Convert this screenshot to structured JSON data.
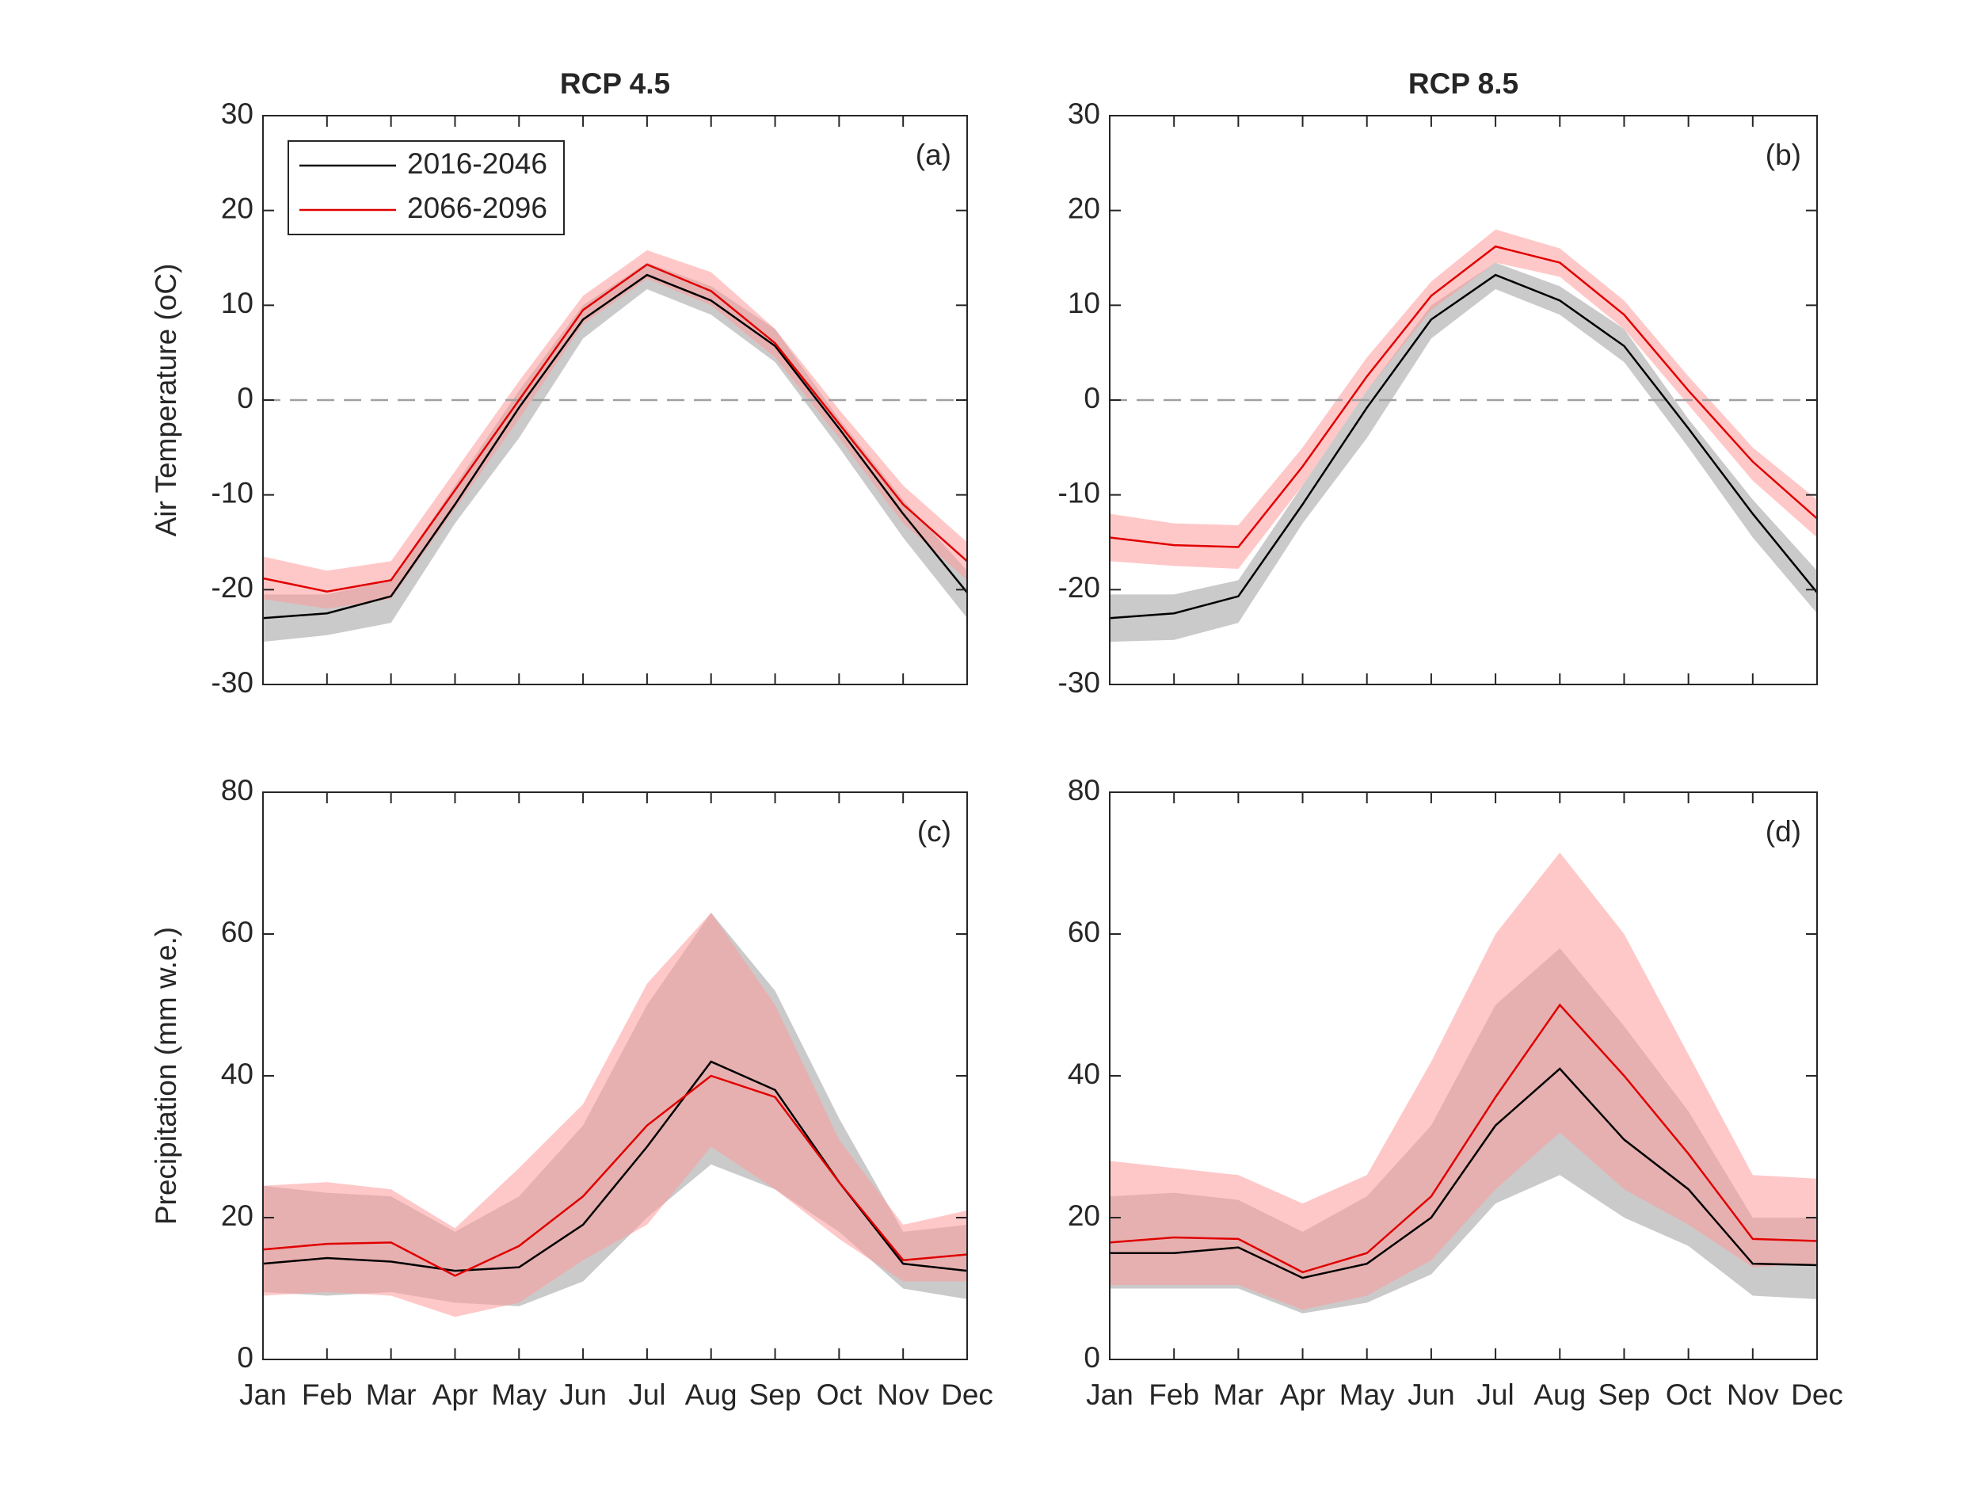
{
  "chart_data": [
    {
      "type": "line",
      "title": "RCP 4.5",
      "annotation": "(a)",
      "ylabel": "Air Temperature (oC)",
      "x": [
        1,
        2,
        3,
        4,
        5,
        6,
        7,
        8,
        9,
        10,
        11,
        12
      ],
      "xlim": [
        1,
        12
      ],
      "xticks": [
        1,
        2,
        3,
        4,
        5,
        6,
        7,
        8,
        9,
        10,
        11,
        12
      ],
      "ylim": [
        -30,
        30
      ],
      "yticks": [
        -30,
        -20,
        -10,
        0,
        10,
        20,
        30
      ],
      "reference_line": 0,
      "legend": "upper left",
      "series": [
        {
          "name": "2016-2046",
          "color": "#000000",
          "band_color": "#bdbdbd",
          "values": [
            -23,
            -22.5,
            -20.7,
            -11,
            -0.8,
            8.5,
            13.2,
            10.5,
            5.7,
            -3,
            -12,
            -20.3
          ],
          "lower": [
            -25.5,
            -24.8,
            -23.5,
            -13,
            -4,
            6.5,
            11.7,
            9,
            4,
            -5,
            -14.5,
            -23
          ],
          "upper": [
            -20.5,
            -20.5,
            -19,
            -9,
            1,
            10,
            14.5,
            12,
            7.5,
            -2,
            -10.5,
            -18
          ]
        },
        {
          "name": "2066-2096",
          "color": "#e00000",
          "band_color": "#ff9a9a",
          "values": [
            -18.8,
            -20.2,
            -19,
            -9.5,
            0,
            9.5,
            14.3,
            11.5,
            6,
            -2.5,
            -11,
            -17
          ],
          "lower": [
            -21,
            -22,
            -21,
            -11.5,
            -2,
            8,
            12.8,
            10,
            4.5,
            -4,
            -13,
            -19
          ],
          "upper": [
            -16.5,
            -18,
            -17,
            -7.5,
            2,
            11,
            15.8,
            13.5,
            7.5,
            -1,
            -9,
            -15
          ]
        }
      ]
    },
    {
      "type": "line",
      "title": "RCP 8.5",
      "annotation": "(b)",
      "x": [
        1,
        2,
        3,
        4,
        5,
        6,
        7,
        8,
        9,
        10,
        11,
        12
      ],
      "xlim": [
        1,
        12
      ],
      "xticks": [
        1,
        2,
        3,
        4,
        5,
        6,
        7,
        8,
        9,
        10,
        11,
        12
      ],
      "ylim": [
        -30,
        30
      ],
      "yticks": [
        -30,
        -20,
        -10,
        0,
        10,
        20,
        30
      ],
      "reference_line": 0,
      "series": [
        {
          "color": "#000000",
          "band_color": "#bdbdbd",
          "values": [
            -23,
            -22.5,
            -20.7,
            -11,
            -0.8,
            8.5,
            13.2,
            10.5,
            5.7,
            -3,
            -12,
            -20.3
          ],
          "lower": [
            -25.5,
            -25.3,
            -23.5,
            -13,
            -4,
            6.5,
            11.7,
            9,
            4,
            -5,
            -14.5,
            -22.5
          ],
          "upper": [
            -20.5,
            -20.5,
            -19,
            -9,
            1,
            10,
            14.5,
            12,
            7.5,
            -2,
            -10.5,
            -18
          ]
        },
        {
          "color": "#e00000",
          "band_color": "#ff9a9a",
          "values": [
            -14.5,
            -15.3,
            -15.5,
            -7,
            2.5,
            11,
            16.2,
            14.5,
            9,
            1,
            -6.5,
            -12.5
          ],
          "lower": [
            -17,
            -17.5,
            -17.8,
            -9,
            1,
            9.5,
            14.5,
            13,
            7.5,
            -0.5,
            -8.5,
            -14.5
          ],
          "upper": [
            -12,
            -13,
            -13.2,
            -5,
            4.5,
            12.5,
            18,
            16,
            10.5,
            2.5,
            -5,
            -10.5
          ]
        }
      ]
    },
    {
      "type": "line",
      "annotation": "(c)",
      "ylabel": "Precipitation (mm w.e.)",
      "x": [
        1,
        2,
        3,
        4,
        5,
        6,
        7,
        8,
        9,
        10,
        11,
        12
      ],
      "xlim": [
        1,
        12
      ],
      "xticks": [
        {
          "value": 1,
          "label": "Jan"
        },
        {
          "value": 2,
          "label": "Feb"
        },
        {
          "value": 3,
          "label": "Mar"
        },
        {
          "value": 4,
          "label": "Apr"
        },
        {
          "value": 5,
          "label": "May"
        },
        {
          "value": 6,
          "label": "Jun"
        },
        {
          "value": 7,
          "label": "Jul"
        },
        {
          "value": 8,
          "label": "Aug"
        },
        {
          "value": 9,
          "label": "Sep"
        },
        {
          "value": 10,
          "label": "Oct"
        },
        {
          "value": 11,
          "label": "Nov"
        },
        {
          "value": 12,
          "label": "Dec"
        }
      ],
      "ylim": [
        0,
        80
      ],
      "yticks": [
        0,
        20,
        40,
        60,
        80
      ],
      "series": [
        {
          "color": "#000000",
          "band_color": "#bdbdbd",
          "values": [
            13.5,
            14.3,
            13.8,
            12.5,
            13,
            19,
            30,
            42,
            38,
            25,
            13.5,
            12.5
          ],
          "lower": [
            9.5,
            9,
            9.5,
            8,
            7.5,
            11,
            20,
            27.5,
            24,
            18,
            10,
            8.5
          ],
          "upper": [
            24.5,
            23.5,
            23,
            18,
            23,
            33,
            50,
            63,
            52,
            34,
            18,
            19
          ]
        },
        {
          "color": "#e00000",
          "band_color": "#ff9a9a",
          "values": [
            15.5,
            16.3,
            16.5,
            11.8,
            16,
            23,
            33,
            40,
            37,
            25,
            14,
            14.8
          ],
          "lower": [
            9,
            9.5,
            9,
            6,
            8,
            14,
            19,
            30,
            24,
            17,
            11,
            11
          ],
          "upper": [
            24.5,
            25,
            24,
            18.5,
            27,
            36,
            53,
            63,
            50,
            31,
            19,
            21
          ]
        }
      ]
    },
    {
      "type": "line",
      "annotation": "(d)",
      "x": [
        1,
        2,
        3,
        4,
        5,
        6,
        7,
        8,
        9,
        10,
        11,
        12
      ],
      "xlim": [
        1,
        12
      ],
      "xticks": [
        {
          "value": 1,
          "label": "Jan"
        },
        {
          "value": 2,
          "label": "Feb"
        },
        {
          "value": 3,
          "label": "Mar"
        },
        {
          "value": 4,
          "label": "Apr"
        },
        {
          "value": 5,
          "label": "May"
        },
        {
          "value": 6,
          "label": "Jun"
        },
        {
          "value": 7,
          "label": "Jul"
        },
        {
          "value": 8,
          "label": "Aug"
        },
        {
          "value": 9,
          "label": "Sep"
        },
        {
          "value": 10,
          "label": "Oct"
        },
        {
          "value": 11,
          "label": "Nov"
        },
        {
          "value": 12,
          "label": "Dec"
        }
      ],
      "ylim": [
        0,
        80
      ],
      "yticks": [
        0,
        20,
        40,
        60,
        80
      ],
      "series": [
        {
          "color": "#000000",
          "band_color": "#bdbdbd",
          "values": [
            15,
            15,
            15.8,
            11.5,
            13.5,
            20,
            33,
            41,
            31,
            24,
            13.5,
            13.3
          ],
          "lower": [
            10,
            10,
            10,
            6.5,
            8,
            12,
            22,
            26,
            20,
            16,
            9,
            8.5
          ],
          "upper": [
            23,
            23.5,
            22.5,
            18,
            23,
            33,
            50,
            58,
            47,
            35,
            20,
            20
          ]
        },
        {
          "color": "#e00000",
          "band_color": "#ff9a9a",
          "values": [
            16.5,
            17.2,
            17,
            12.3,
            15,
            23,
            37,
            50,
            40,
            29,
            17,
            16.7
          ],
          "lower": [
            10.5,
            10.5,
            10.5,
            7,
            9,
            14,
            24,
            32,
            24,
            19,
            13,
            13.5
          ],
          "upper": [
            28,
            27,
            26,
            22,
            26,
            42,
            60,
            71.5,
            60,
            43,
            26,
            25.5
          ]
        }
      ]
    }
  ]
}
